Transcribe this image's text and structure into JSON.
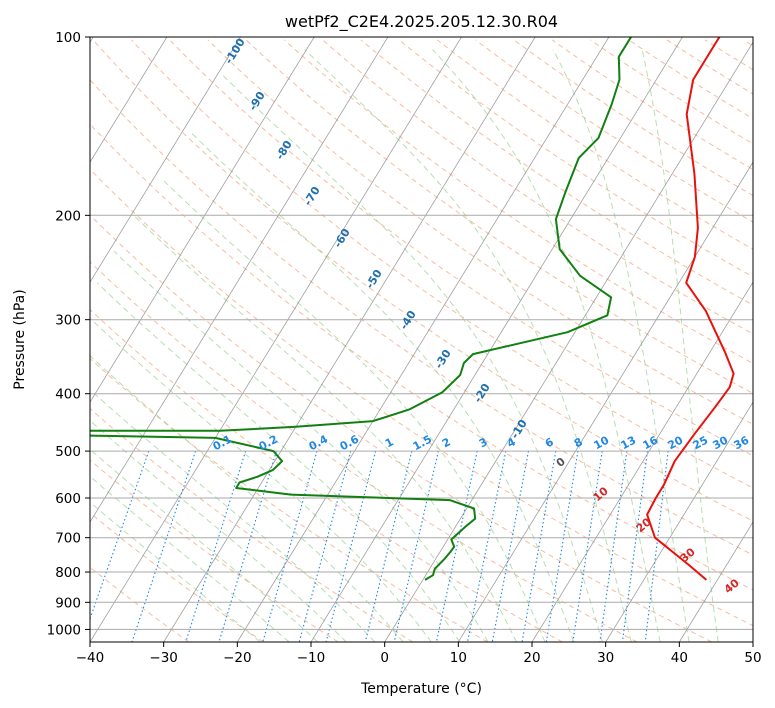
{
  "chart_data": {
    "type": "line",
    "subtype": "skew-T log-p diagram",
    "title": "wetPf2_C2E4.2025.205.12.30.R04",
    "xlabel": "Temperature (°C)",
    "ylabel": "Pressure (hPa)",
    "xlim": [
      -40,
      50
    ],
    "ylim": [
      1050,
      100
    ],
    "y_scale": "log",
    "x_ticks": [
      -40,
      -30,
      -20,
      -10,
      0,
      10,
      20,
      30,
      40,
      50
    ],
    "x_tick_labels": [
      "−40",
      "−30",
      "−20",
      "−10",
      "0",
      "10",
      "20",
      "30",
      "40",
      "50"
    ],
    "y_ticks": [
      100,
      200,
      300,
      400,
      500,
      600,
      700,
      800,
      900,
      1000
    ],
    "y_tick_labels": [
      "100",
      "200",
      "300",
      "400",
      "500",
      "600",
      "700",
      "800",
      "900",
      "1000"
    ],
    "grid": true,
    "series": [
      {
        "color": "#e8120c",
        "points": [
          [
            38.5,
            825
          ],
          [
            35,
            780
          ],
          [
            28,
            700
          ],
          [
            25,
            640
          ],
          [
            24.8,
            600
          ],
          [
            24.8,
            570
          ],
          [
            24.3,
            520
          ],
          [
            24.7,
            470
          ],
          [
            25.3,
            420
          ],
          [
            25.6,
            390
          ],
          [
            25,
            370
          ],
          [
            22,
            340
          ],
          [
            16,
            290
          ],
          [
            11,
            260
          ],
          [
            10,
            235
          ],
          [
            8,
            210
          ],
          [
            3,
            170
          ],
          [
            -3,
            135
          ],
          [
            -5,
            118
          ],
          [
            -5,
            105
          ],
          [
            -5,
            100
          ]
        ]
      },
      {
        "color": "#118011",
        "points": [
          [
            0.3,
            825
          ],
          [
            1,
            810
          ],
          [
            0.7,
            790
          ],
          [
            1.2,
            760
          ],
          [
            1.4,
            740
          ],
          [
            1.5,
            725
          ],
          [
            0.5,
            705
          ],
          [
            1.3,
            672
          ],
          [
            2,
            650
          ],
          [
            1,
            625
          ],
          [
            -3,
            605
          ],
          [
            -25,
            592
          ],
          [
            -33,
            577
          ],
          [
            -33,
            565
          ],
          [
            -31,
            552
          ],
          [
            -29.5,
            538
          ],
          [
            -29,
            520
          ],
          [
            -31,
            500
          ],
          [
            -40,
            475
          ],
          [
            -60,
            470
          ],
          [
            -60,
            462
          ],
          [
            -40,
            462
          ],
          [
            -30,
            455
          ],
          [
            -20,
            445
          ],
          [
            -16,
            425
          ],
          [
            -13,
            398
          ],
          [
            -12,
            372
          ],
          [
            -12.5,
            355
          ],
          [
            -12,
            343
          ],
          [
            -1,
            315
          ],
          [
            3,
            295
          ],
          [
            2,
            275
          ],
          [
            -4,
            253
          ],
          [
            -9,
            228
          ],
          [
            -12,
            203
          ],
          [
            -13,
            182
          ],
          [
            -14,
            160
          ],
          [
            -13,
            148
          ],
          [
            -14,
            130
          ],
          [
            -15,
            118
          ],
          [
            -17,
            108
          ],
          [
            -17,
            100
          ]
        ]
      }
    ],
    "annotations": {
      "isotherm_labels": [
        "-100",
        "-90",
        "-80",
        "-70",
        "-60",
        "-50",
        "-40",
        "-30",
        "-20",
        "-10"
      ],
      "mixing_ratio_labels": [
        "0.1",
        "0.2",
        "0.4",
        "0.6",
        "1",
        "1.5",
        "2",
        "3",
        "4",
        "6",
        "8",
        "10",
        "13",
        "16",
        "20",
        "25",
        "30",
        "36"
      ],
      "moist_adiabat_labels": [
        "0",
        "10",
        "20",
        "30",
        "40"
      ]
    },
    "colors": {
      "temperature": "#e8120c",
      "dewpoint": "#118011",
      "dry_adiabat": "#f4a582",
      "moist_adiabat": "#9fd39a",
      "mixing_ratio": "#1f88e5",
      "isotherm_label": "#1f6fae",
      "moist_label": "#d62728",
      "grid": "#aaaaaa"
    }
  }
}
